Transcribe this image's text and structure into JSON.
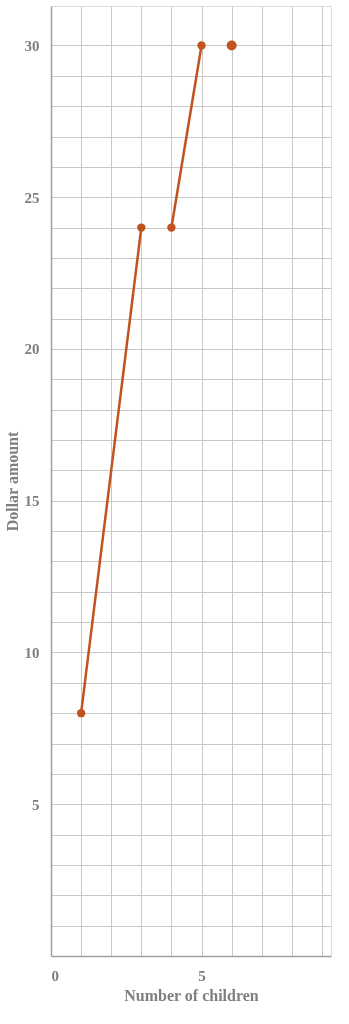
{
  "chart_data": {
    "type": "line",
    "xlabel": "Number of children",
    "ylabel": "Dollar amount",
    "xlim": [
      0,
      9.3
    ],
    "ylim": [
      0,
      31.3
    ],
    "xticks": [
      0,
      {
        "value": 1,
        "label": null
      },
      {
        "value": 2,
        "label": null
      },
      {
        "value": 3,
        "label": null
      },
      {
        "value": 4,
        "label": null
      },
      5,
      {
        "value": 6,
        "label": null
      },
      {
        "value": 7,
        "label": null
      },
      {
        "value": 8,
        "label": null
      },
      {
        "value": 9,
        "label": null
      }
    ],
    "yticks": [
      {
        "value": 0,
        "label": null
      },
      {
        "value": 1,
        "label": null
      },
      {
        "value": 2,
        "label": null
      },
      {
        "value": 3,
        "label": null
      },
      {
        "value": 4,
        "label": null
      },
      5,
      {
        "value": 6,
        "label": null
      },
      {
        "value": 7,
        "label": null
      },
      {
        "value": 8,
        "label": null
      },
      {
        "value": 9,
        "label": null
      },
      10,
      {
        "value": 11,
        "label": null
      },
      {
        "value": 12,
        "label": null
      },
      {
        "value": 13,
        "label": null
      },
      {
        "value": 14,
        "label": null
      },
      15,
      {
        "value": 16,
        "label": null
      },
      {
        "value": 17,
        "label": null
      },
      {
        "value": 18,
        "label": null
      },
      {
        "value": 19,
        "label": null
      },
      20,
      {
        "value": 21,
        "label": null
      },
      {
        "value": 22,
        "label": null
      },
      {
        "value": 23,
        "label": null
      },
      {
        "value": 24,
        "label": null
      },
      25,
      {
        "value": 26,
        "label": null
      },
      {
        "value": 27,
        "label": null
      },
      {
        "value": 28,
        "label": null
      },
      {
        "value": 29,
        "label": null
      },
      30
    ],
    "grid": true,
    "marker": "circle",
    "line_style": "solid",
    "series": [
      {
        "color": "#c0531f",
        "x": [
          1,
          3
        ],
        "values": [
          8,
          24
        ]
      },
      {
        "color": "#c0531f",
        "x": [
          4,
          5
        ],
        "values": [
          24,
          30
        ]
      },
      {
        "type": "scatter",
        "color": "#c0531f",
        "x": [
          6
        ],
        "values": [
          30
        ]
      }
    ]
  }
}
